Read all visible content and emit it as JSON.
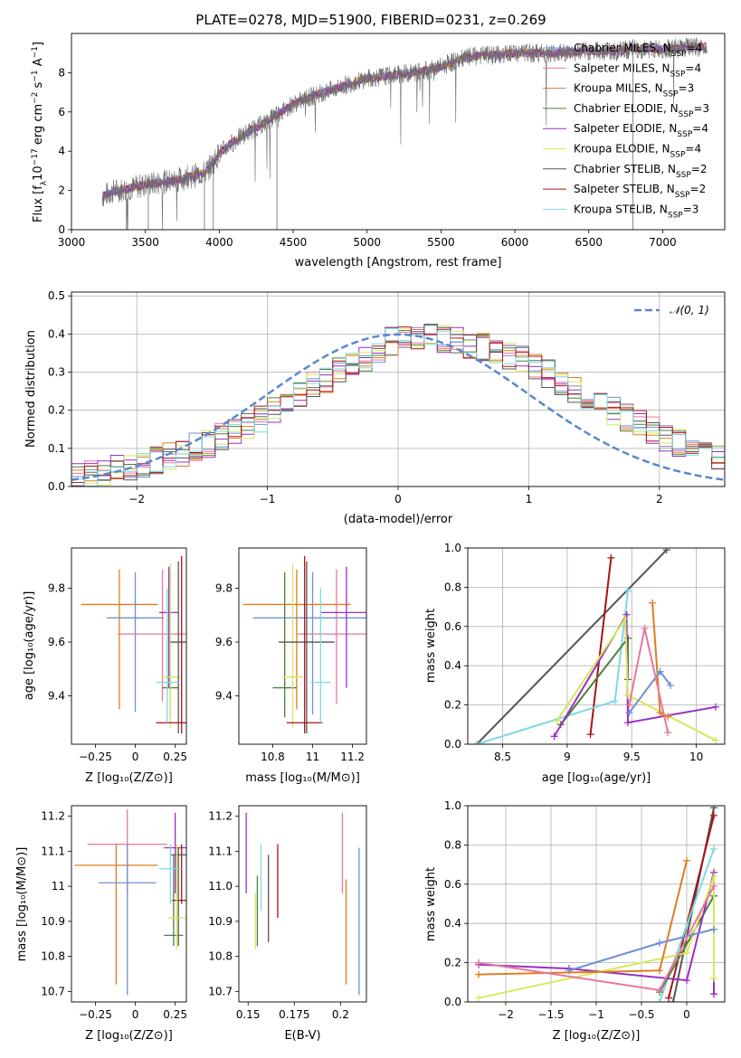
{
  "figure_title": "PLATE=0278, MJD=51900, FIBERID=0231, z=0.269",
  "colors": {
    "chab_miles": "#6f8fd8",
    "salp_miles": "#e8779f",
    "krou_miles": "#de7d22",
    "chab_elodie": "#4f7f3a",
    "salp_elodie": "#9a2fbd",
    "krou_elodie": "#d6e85a",
    "chab_stelib": "#555555",
    "salp_stelib": "#a81316",
    "krou_stelib": "#7fd9e0",
    "normal": "#5b87cf",
    "grid": "#b0b0b0"
  },
  "chart_data": [
    {
      "id": "spectrum",
      "type": "line",
      "title": "PLATE=0278, MJD=51900, FIBERID=0231, z=0.269",
      "xlabel": "wavelength [Angstrom, rest frame]",
      "ylabel": "Flux [f_λ 10^-17 erg cm^-2 s^-1 A^-1]",
      "xlim": [
        3000,
        7420
      ],
      "ylim": [
        0,
        10
      ],
      "xticks": [
        3000,
        3500,
        4000,
        4500,
        5000,
        5500,
        6000,
        6500,
        7000
      ],
      "yticks": [
        0,
        2,
        4,
        6,
        8
      ],
      "grid": false,
      "legend_position": "top-right",
      "data_x": [
        3210,
        3300,
        3400,
        3500,
        3600,
        3700,
        3800,
        3900,
        3950,
        4000,
        4100,
        4200,
        4300,
        4400,
        4500,
        4600,
        4700,
        4800,
        4900,
        5000,
        5100,
        5200,
        5300,
        5400,
        5500,
        5600,
        5700,
        5800,
        5900,
        6000,
        6100,
        6200,
        6300,
        6400,
        6500,
        6600,
        6700,
        6800,
        6900,
        7000,
        7100,
        7200,
        7300
      ],
      "data_y": [
        1.7,
        2.0,
        2.1,
        2.3,
        2.4,
        2.5,
        2.7,
        2.9,
        3.3,
        3.9,
        4.5,
        5.0,
        5.4,
        5.9,
        6.4,
        6.7,
        7.0,
        7.2,
        7.5,
        7.7,
        7.8,
        7.9,
        8.0,
        8.1,
        8.3,
        8.6,
        8.8,
        8.9,
        8.9,
        9.0,
        9.0,
        9.0,
        9.0,
        9.05,
        9.1,
        9.1,
        9.1,
        9.2,
        9.2,
        9.2,
        9.25,
        9.3,
        9.3
      ],
      "legend": [
        {
          "label": "Chabrier MILES, N",
          "sub": "SSP",
          "tail": "=4",
          "color_key": "chab_miles"
        },
        {
          "label": "Salpeter MILES, N",
          "sub": "SSP",
          "tail": "=4",
          "color_key": "salp_miles"
        },
        {
          "label": "Kroupa MILES, N",
          "sub": "SSP",
          "tail": "=3",
          "color_key": "krou_miles"
        },
        {
          "label": "Chabrier ELODIE, N",
          "sub": "SSP",
          "tail": "=3",
          "color_key": "chab_elodie"
        },
        {
          "label": "Salpeter ELODIE, N",
          "sub": "SSP",
          "tail": "=4",
          "color_key": "salp_elodie"
        },
        {
          "label": "Kroupa ELODIE, N",
          "sub": "SSP",
          "tail": "=4",
          "color_key": "krou_elodie"
        },
        {
          "label": "Chabrier STELIB, N",
          "sub": "SSP",
          "tail": "=2",
          "color_key": "chab_stelib"
        },
        {
          "label": "Salpeter STELIB, N",
          "sub": "SSP",
          "tail": "=2",
          "color_key": "salp_stelib"
        },
        {
          "label": "Kroupa STELIB, N",
          "sub": "SSP",
          "tail": "=3",
          "color_key": "krou_stelib"
        }
      ]
    },
    {
      "id": "residuals",
      "type": "line",
      "xlabel": "(data-model)/error",
      "ylabel": "Normed distribution",
      "xlim": [
        -2.5,
        2.5
      ],
      "ylim": [
        0,
        0.51
      ],
      "xticks": [
        -2,
        -1,
        0,
        1,
        2
      ],
      "yticks": [
        0.0,
        0.1,
        0.2,
        0.3,
        0.4,
        0.5
      ],
      "grid": true,
      "legend_position": "top-right",
      "legend_label": "𝒩(0, 1)",
      "bin_edges_start": -2.5,
      "bin_width": 0.1,
      "base_values": [
        0.03,
        0.035,
        0.04,
        0.045,
        0.05,
        0.06,
        0.07,
        0.08,
        0.09,
        0.104,
        0.113,
        0.13,
        0.145,
        0.161,
        0.178,
        0.198,
        0.219,
        0.242,
        0.265,
        0.28,
        0.3,
        0.322,
        0.34,
        0.36,
        0.38,
        0.4,
        0.395,
        0.39,
        0.385,
        0.38,
        0.372,
        0.366,
        0.357,
        0.342,
        0.333,
        0.315,
        0.296,
        0.275,
        0.254,
        0.237,
        0.219,
        0.198,
        0.18,
        0.163,
        0.146,
        0.13,
        0.116,
        0.103,
        0.091,
        0.08
      ]
    },
    {
      "id": "age_vs_Z",
      "type": "scatter",
      "xlabel": "Z [log₁₀(Z/Z⊙)]",
      "ylabel": "age  [log₁₀(age/yr)]",
      "xlim": [
        -0.4,
        0.32
      ],
      "ylim": [
        9.22,
        9.95
      ],
      "xticks": [
        -0.25,
        0.0,
        0.25
      ],
      "yticks": [
        9.4,
        9.6,
        9.8
      ],
      "points": [
        {
          "color_key": "krou_miles",
          "x": -0.1,
          "xerr": 0.24,
          "y": 9.74,
          "ylo": 9.35,
          "yhi": 9.87
        },
        {
          "color_key": "chab_miles",
          "x": 0.0,
          "xerr": 0.18,
          "y": 9.69,
          "ylo": 9.34,
          "yhi": 9.86
        },
        {
          "color_key": "salp_miles",
          "x": 0.17,
          "xerr": 0.28,
          "y": 9.63,
          "ylo": 9.38,
          "yhi": 9.87
        },
        {
          "color_key": "salp_elodie",
          "x": 0.21,
          "xerr": 0.06,
          "y": 9.71,
          "ylo": 9.43,
          "yhi": 9.88
        },
        {
          "color_key": "chab_elodie",
          "x": 0.22,
          "xerr": 0.05,
          "y": 9.43,
          "ylo": 9.32,
          "yhi": 9.86
        },
        {
          "color_key": "krou_elodie",
          "x": 0.22,
          "xerr": 0.06,
          "y": 9.47,
          "ylo": 9.28,
          "yhi": 9.89
        },
        {
          "color_key": "chab_stelib",
          "x": 0.27,
          "xerr": 0.05,
          "y": 9.6,
          "ylo": 9.26,
          "yhi": 9.9
        },
        {
          "color_key": "salp_stelib",
          "x": 0.29,
          "xerr": 0.16,
          "y": 9.3,
          "ylo": 9.26,
          "yhi": 9.92
        },
        {
          "color_key": "krou_stelib",
          "x": 0.2,
          "xerr": 0.07,
          "y": 9.45,
          "ylo": 9.3,
          "yhi": 9.8
        }
      ]
    },
    {
      "id": "age_vs_mass",
      "type": "scatter",
      "xlabel": "mass [log₁₀(M/M⊙)]",
      "ylabel": "",
      "xlim": [
        10.63,
        11.27
      ],
      "ylim": [
        9.22,
        9.95
      ],
      "xticks": [
        10.8,
        11.0,
        11.2
      ],
      "yticks": [
        9.4,
        9.6,
        9.8
      ],
      "points": [
        {
          "color_key": "chab_miles",
          "x": 11.0,
          "xerr": 0.3,
          "y": 9.69,
          "ylo": 9.33,
          "yhi": 9.86
        },
        {
          "color_key": "krou_miles",
          "x": 10.92,
          "xerr": 0.27,
          "y": 9.74,
          "ylo": 9.35,
          "yhi": 9.87
        },
        {
          "color_key": "salp_miles",
          "x": 11.12,
          "xerr": 0.2,
          "y": 9.63,
          "ylo": 9.37,
          "yhi": 9.87
        },
        {
          "color_key": "salp_elodie",
          "x": 11.17,
          "xerr": 0.13,
          "y": 9.71,
          "ylo": 9.43,
          "yhi": 9.88
        },
        {
          "color_key": "chab_elodie",
          "x": 10.86,
          "xerr": 0.06,
          "y": 9.43,
          "ylo": 9.32,
          "yhi": 9.86
        },
        {
          "color_key": "krou_elodie",
          "x": 10.9,
          "xerr": 0.05,
          "y": 9.47,
          "ylo": 9.28,
          "yhi": 9.89
        },
        {
          "color_key": "chab_stelib",
          "x": 10.97,
          "xerr": 0.14,
          "y": 9.6,
          "ylo": 9.26,
          "yhi": 9.9
        },
        {
          "color_key": "salp_stelib",
          "x": 10.96,
          "xerr": 0.09,
          "y": 9.3,
          "ylo": 9.26,
          "yhi": 9.92
        },
        {
          "color_key": "krou_stelib",
          "x": 11.04,
          "xerr": 0.05,
          "y": 9.45,
          "ylo": 9.3,
          "yhi": 9.8
        }
      ]
    },
    {
      "id": "weight_vs_age",
      "type": "line",
      "xlabel": "age  [log₁₀(age/yr)]",
      "ylabel": "mass weight",
      "xlim": [
        8.23,
        10.22
      ],
      "ylim": [
        0,
        1.0
      ],
      "xticks": [
        8.5,
        9.0,
        9.5,
        10.0
      ],
      "yticks": [
        0.0,
        0.2,
        0.4,
        0.6,
        0.8,
        1.0
      ],
      "grid": true,
      "series": [
        {
          "color_key": "chab_stelib",
          "x": [
            8.3,
            9.77
          ],
          "y": [
            0.0,
            0.99
          ]
        },
        {
          "color_key": "salp_stelib",
          "x": [
            9.18,
            9.34
          ],
          "y": [
            0.05,
            0.95
          ]
        },
        {
          "color_key": "krou_stelib",
          "x": [
            8.3,
            9.37,
            9.47
          ],
          "y": [
            0.0,
            0.22,
            0.78
          ]
        },
        {
          "color_key": "chab_elodie",
          "x": [
            8.95,
            9.47,
            9.47
          ],
          "y": [
            0.1,
            0.54,
            0.33
          ]
        },
        {
          "color_key": "salp_elodie",
          "x": [
            8.9,
            9.46,
            9.47,
            10.15
          ],
          "y": [
            0.04,
            0.66,
            0.11,
            0.19
          ]
        },
        {
          "color_key": "krou_elodie",
          "x": [
            8.92,
            9.45,
            9.47,
            10.15
          ],
          "y": [
            0.12,
            0.64,
            0.25,
            0.02
          ]
        },
        {
          "color_key": "krou_miles",
          "x": [
            9.66,
            9.72,
            9.78
          ],
          "y": [
            0.72,
            0.16,
            0.14
          ]
        },
        {
          "color_key": "chab_miles",
          "x": [
            9.48,
            9.72,
            9.8
          ],
          "y": [
            0.16,
            0.37,
            0.3
          ]
        },
        {
          "color_key": "salp_miles",
          "x": [
            9.48,
            9.6,
            9.78
          ],
          "y": [
            0.2,
            0.59,
            0.06
          ]
        }
      ]
    },
    {
      "id": "mass_vs_Z",
      "type": "scatter",
      "xlabel": "Z [log₁₀(Z/Z⊙)]",
      "ylabel": "mass [log₁₀(M/M⊙)]",
      "xlim": [
        -0.4,
        0.32
      ],
      "ylim": [
        10.67,
        11.23
      ],
      "xticks": [
        -0.25,
        0.0,
        0.25
      ],
      "yticks": [
        10.7,
        10.8,
        10.9,
        11.0,
        11.1,
        11.2
      ],
      "points": [
        {
          "color_key": "salp_miles",
          "x": -0.05,
          "xerr": 0.25,
          "y": 11.12,
          "ylo": 10.98,
          "yhi": 11.22
        },
        {
          "color_key": "krou_miles",
          "x": -0.12,
          "xerr": 0.26,
          "y": 11.06,
          "ylo": 10.72,
          "yhi": 11.12
        },
        {
          "color_key": "chab_miles",
          "x": -0.05,
          "xerr": 0.18,
          "y": 11.01,
          "ylo": 10.69,
          "yhi": 11.12
        },
        {
          "color_key": "salp_elodie",
          "x": 0.25,
          "xerr": 0.07,
          "y": 11.11,
          "ylo": 10.98,
          "yhi": 11.21
        },
        {
          "color_key": "salp_stelib",
          "x": 0.29,
          "xerr": 0.06,
          "y": 10.96,
          "ylo": 10.95,
          "yhi": 11.12
        },
        {
          "color_key": "chab_stelib",
          "x": 0.27,
          "xerr": 0.05,
          "y": 11.09,
          "ylo": 10.83,
          "yhi": 11.11
        },
        {
          "color_key": "chab_elodie",
          "x": 0.24,
          "xerr": 0.06,
          "y": 10.86,
          "ylo": 10.83,
          "yhi": 11.09
        },
        {
          "color_key": "krou_elodie",
          "x": 0.26,
          "xerr": 0.06,
          "y": 10.91,
          "ylo": 10.82,
          "yhi": 11.12
        },
        {
          "color_key": "krou_stelib",
          "x": 0.22,
          "xerr": 0.07,
          "y": 11.05,
          "ylo": 10.95,
          "yhi": 11.12
        }
      ]
    },
    {
      "id": "mass_vs_ebv",
      "type": "scatter",
      "xlabel": "E(B-V)",
      "ylabel": "",
      "xlim": [
        0.145,
        0.214
      ],
      "ylim": [
        10.67,
        11.23
      ],
      "xticks": [
        0.15,
        0.175,
        0.2
      ],
      "yticks": [
        10.7,
        10.8,
        10.9,
        11.0,
        11.1,
        11.2
      ],
      "points": [
        {
          "color_key": "salp_elodie",
          "x": 0.149,
          "ylo": 10.98,
          "yhi": 11.21
        },
        {
          "color_key": "krou_elodie",
          "x": 0.154,
          "ylo": 10.82,
          "yhi": 10.98
        },
        {
          "color_key": "chab_elodie",
          "x": 0.155,
          "ylo": 10.83,
          "yhi": 11.03
        },
        {
          "color_key": "krou_stelib",
          "x": 0.157,
          "ylo": 10.93,
          "yhi": 11.12
        },
        {
          "color_key": "chab_stelib",
          "x": 0.161,
          "ylo": 10.84,
          "yhi": 11.09
        },
        {
          "color_key": "salp_stelib",
          "x": 0.166,
          "ylo": 10.91,
          "yhi": 11.12
        },
        {
          "color_key": "salp_miles",
          "x": 0.201,
          "ylo": 10.98,
          "yhi": 11.21
        },
        {
          "color_key": "krou_miles",
          "x": 0.203,
          "ylo": 10.72,
          "yhi": 11.02
        },
        {
          "color_key": "chab_miles",
          "x": 0.21,
          "ylo": 10.69,
          "yhi": 11.11
        }
      ]
    },
    {
      "id": "weight_vs_Z",
      "type": "line",
      "xlabel": "Z [log₁₀(Z/Z⊙)]",
      "ylabel": "mass weight",
      "xlim": [
        -2.42,
        0.42
      ],
      "ylim": [
        0,
        1.0
      ],
      "xticks": [
        -2.0,
        -1.5,
        -1.0,
        -0.5,
        0.0
      ],
      "yticks": [
        0.0,
        0.2,
        0.4,
        0.6,
        0.8,
        1.0
      ],
      "grid": true,
      "series": [
        {
          "color_key": "chab_stelib",
          "x": [
            -0.15,
            0.3
          ],
          "y": [
            0.0,
            0.99
          ]
        },
        {
          "color_key": "salp_stelib",
          "x": [
            -0.2,
            0.3
          ],
          "y": [
            0.02,
            0.95
          ]
        },
        {
          "color_key": "krou_stelib",
          "x": [
            -0.3,
            0.3
          ],
          "y": [
            0.0,
            0.78
          ]
        },
        {
          "color_key": "chab_elodie",
          "x": [
            -0.3,
            0.3
          ],
          "y": [
            0.05,
            0.54
          ]
        },
        {
          "color_key": "salp_elodie",
          "x": [
            -2.3,
            -1.3,
            0.0,
            0.3,
            0.3
          ],
          "y": [
            0.19,
            0.17,
            0.11,
            0.66,
            0.04
          ]
        },
        {
          "color_key": "krou_elodie",
          "x": [
            -2.3,
            0.0,
            0.3,
            0.3
          ],
          "y": [
            0.02,
            0.25,
            0.64,
            0.12
          ]
        },
        {
          "color_key": "krou_miles",
          "x": [
            -2.3,
            -0.3,
            0.0
          ],
          "y": [
            0.14,
            0.16,
            0.72
          ]
        },
        {
          "color_key": "chab_miles",
          "x": [
            -1.3,
            -0.3,
            0.3
          ],
          "y": [
            0.16,
            0.3,
            0.37
          ]
        },
        {
          "color_key": "salp_miles",
          "x": [
            -2.3,
            -0.3,
            0.3
          ],
          "y": [
            0.2,
            0.06,
            0.59
          ]
        }
      ]
    }
  ]
}
